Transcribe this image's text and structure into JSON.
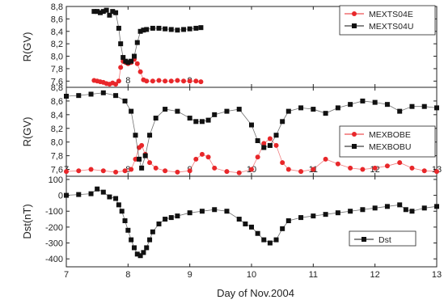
{
  "figure": {
    "xlabel": "Day of Nov.2004"
  },
  "chart_data": [
    {
      "type": "scatter",
      "ylabel": "R(GV)",
      "xlim": [
        7,
        13
      ],
      "ylim": [
        7.5,
        8.8
      ],
      "yticks": [
        "7,6",
        "7,8",
        "8,0",
        "8,2",
        "8,4",
        "8,6",
        "8,8"
      ],
      "ytick_values": [
        7.6,
        7.8,
        8.0,
        8.2,
        8.4,
        8.6,
        8.8
      ],
      "legend_position": "top-right",
      "series": [
        {
          "name": "MEXTS04E",
          "color": "#e8272a",
          "marker": "circle",
          "x": [
            7.45,
            7.5,
            7.55,
            7.6,
            7.65,
            7.7,
            7.75,
            7.8,
            7.85,
            7.88,
            7.92,
            7.96,
            8.0,
            8.05,
            8.1,
            8.15,
            8.2,
            8.25,
            8.3,
            8.4,
            8.5,
            8.6,
            8.7,
            8.8,
            8.9,
            9.0,
            9.1,
            9.18
          ],
          "y": [
            7.61,
            7.6,
            7.59,
            7.58,
            7.56,
            7.55,
            7.57,
            7.55,
            7.6,
            7.82,
            7.92,
            7.9,
            7.88,
            7.9,
            7.95,
            7.88,
            7.75,
            7.62,
            7.6,
            7.6,
            7.61,
            7.6,
            7.6,
            7.61,
            7.6,
            7.6,
            7.6,
            7.59
          ]
        },
        {
          "name": "MEXTS04U",
          "color": "#111111",
          "marker": "square",
          "x": [
            7.45,
            7.5,
            7.55,
            7.6,
            7.65,
            7.7,
            7.75,
            7.8,
            7.85,
            7.88,
            7.92,
            7.96,
            8.0,
            8.05,
            8.1,
            8.15,
            8.2,
            8.25,
            8.3,
            8.4,
            8.5,
            8.6,
            8.7,
            8.8,
            8.9,
            9.0,
            9.1,
            9.18
          ],
          "y": [
            8.72,
            8.72,
            8.7,
            8.72,
            8.74,
            8.66,
            8.72,
            8.7,
            8.45,
            8.2,
            7.98,
            7.92,
            7.9,
            7.92,
            8.0,
            8.22,
            8.4,
            8.42,
            8.43,
            8.45,
            8.45,
            8.44,
            8.43,
            8.42,
            8.43,
            8.44,
            8.45,
            8.46
          ]
        }
      ]
    },
    {
      "type": "scatter",
      "ylabel": "R(GV)",
      "xlim": [
        7,
        13
      ],
      "ylim": [
        7.5,
        8.8
      ],
      "yticks": [
        "7,6",
        "7,8",
        "8,0",
        "8,2",
        "8,4",
        "8,6",
        "8,8"
      ],
      "ytick_values": [
        7.6,
        7.8,
        8.0,
        8.2,
        8.4,
        8.6,
        8.8
      ],
      "legend_position": "right",
      "series": [
        {
          "name": "MEXBOBE",
          "color": "#e8272a",
          "marker": "circle",
          "x": [
            7.0,
            7.2,
            7.4,
            7.6,
            7.8,
            7.95,
            8.05,
            8.12,
            8.18,
            8.22,
            8.28,
            8.35,
            8.45,
            8.6,
            8.8,
            9.0,
            9.1,
            9.2,
            9.3,
            9.4,
            9.6,
            9.8,
            10.0,
            10.1,
            10.2,
            10.3,
            10.4,
            10.5,
            10.6,
            10.8,
            11.0,
            11.2,
            11.4,
            11.6,
            11.8,
            12.0,
            12.2,
            12.4,
            12.6,
            12.8,
            13.0
          ],
          "y": [
            7.57,
            7.58,
            7.6,
            7.58,
            7.56,
            7.58,
            7.6,
            7.75,
            7.92,
            7.95,
            7.82,
            7.7,
            7.62,
            7.58,
            7.56,
            7.58,
            7.75,
            7.82,
            7.78,
            7.62,
            7.57,
            7.55,
            7.6,
            7.78,
            7.98,
            8.05,
            7.95,
            7.7,
            7.6,
            7.57,
            7.6,
            7.75,
            7.68,
            7.62,
            7.6,
            7.62,
            7.65,
            7.7,
            7.62,
            7.58,
            7.57
          ]
        },
        {
          "name": "MEXBOBU",
          "color": "#111111",
          "marker": "square",
          "x": [
            7.0,
            7.2,
            7.4,
            7.6,
            7.8,
            7.95,
            8.05,
            8.12,
            8.18,
            8.22,
            8.28,
            8.35,
            8.45,
            8.6,
            8.8,
            9.0,
            9.1,
            9.2,
            9.3,
            9.4,
            9.6,
            9.8,
            10.0,
            10.1,
            10.2,
            10.3,
            10.4,
            10.5,
            10.6,
            10.8,
            11.0,
            11.2,
            11.4,
            11.6,
            11.8,
            12.0,
            12.2,
            12.4,
            12.6,
            12.8,
            13.0
          ],
          "y": [
            8.67,
            8.68,
            8.7,
            8.72,
            8.68,
            8.6,
            8.45,
            8.1,
            7.75,
            7.62,
            7.8,
            8.1,
            8.35,
            8.48,
            8.45,
            8.35,
            8.3,
            8.3,
            8.32,
            8.4,
            8.45,
            8.48,
            8.25,
            8.02,
            7.92,
            7.95,
            8.1,
            8.3,
            8.45,
            8.5,
            8.48,
            8.42,
            8.5,
            8.55,
            8.6,
            8.58,
            8.55,
            8.45,
            8.52,
            8.52,
            8.5
          ]
        }
      ]
    },
    {
      "type": "scatter",
      "ylabel": "Dst(nT)",
      "xlim": [
        7,
        13
      ],
      "ylim": [
        -450,
        120
      ],
      "yticks": [
        "-400",
        "-300",
        "-200",
        "-100",
        "0",
        "100"
      ],
      "ytick_values": [
        -400,
        -300,
        -200,
        -100,
        0,
        100
      ],
      "xticks": [
        "7",
        "8",
        "9",
        "10",
        "11",
        "12",
        "13"
      ],
      "xtick_values": [
        7,
        8,
        9,
        10,
        11,
        12,
        13
      ],
      "legend_position": "right",
      "series": [
        {
          "name": "Dst",
          "color": "#111111",
          "marker": "square",
          "x": [
            7.0,
            7.2,
            7.4,
            7.5,
            7.6,
            7.7,
            7.8,
            7.85,
            7.9,
            7.95,
            8.0,
            8.05,
            8.1,
            8.15,
            8.2,
            8.25,
            8.3,
            8.35,
            8.4,
            8.5,
            8.6,
            8.7,
            8.8,
            9.0,
            9.2,
            9.4,
            9.6,
            9.8,
            9.9,
            10.0,
            10.1,
            10.2,
            10.3,
            10.4,
            10.5,
            10.6,
            10.8,
            11.0,
            11.2,
            11.4,
            11.6,
            11.8,
            12.0,
            12.2,
            12.4,
            12.5,
            12.6,
            12.8,
            13.0
          ],
          "y": [
            0,
            5,
            10,
            40,
            20,
            -10,
            -20,
            -60,
            -100,
            -160,
            -220,
            -280,
            -330,
            -370,
            -380,
            -360,
            -330,
            -280,
            -230,
            -180,
            -150,
            -140,
            -130,
            -110,
            -100,
            -90,
            -100,
            -150,
            -180,
            -200,
            -240,
            -280,
            -300,
            -280,
            -210,
            -160,
            -140,
            -130,
            -120,
            -110,
            -100,
            -90,
            -80,
            -70,
            -60,
            -90,
            -100,
            -80,
            -70
          ]
        }
      ]
    }
  ]
}
